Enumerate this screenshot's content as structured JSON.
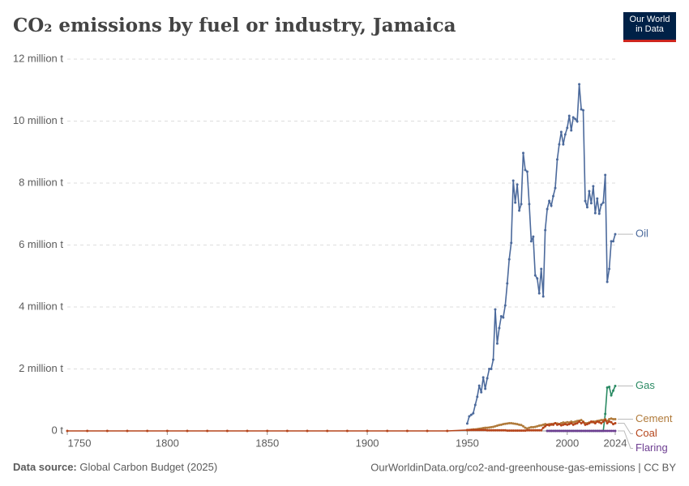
{
  "chart_data": {
    "type": "line",
    "title": "CO₂ emissions by fuel or industry, Jamaica",
    "logo": "Our World in Data",
    "source_label": "Data source:",
    "source": "Global Carbon Budget (2025)",
    "url": "OurWorldinData.org/co2-and-greenhouse-gas-emissions | CC BY",
    "xlim": [
      1750,
      2024
    ],
    "xticks": [
      1750,
      1800,
      1850,
      1900,
      1950,
      2000,
      2024
    ],
    "ylim": [
      0,
      12
    ],
    "yticks": [
      {
        "value": 0,
        "label": "0 t"
      },
      {
        "value": 2,
        "label": "2 million t"
      },
      {
        "value": 4,
        "label": "4 million t"
      },
      {
        "value": 6,
        "label": "6 million t"
      },
      {
        "value": 8,
        "label": "8 million t"
      },
      {
        "value": 10,
        "label": "10 million t"
      },
      {
        "value": 12,
        "label": "12 million t"
      }
    ],
    "grid": true,
    "x": [
      1750,
      1760,
      1770,
      1780,
      1790,
      1800,
      1810,
      1820,
      1830,
      1840,
      1850,
      1860,
      1870,
      1880,
      1890,
      1900,
      1910,
      1920,
      1930,
      1940,
      1950,
      1951,
      1952,
      1953,
      1954,
      1955,
      1956,
      1957,
      1958,
      1959,
      1960,
      1961,
      1962,
      1963,
      1964,
      1965,
      1966,
      1967,
      1968,
      1969,
      1970,
      1971,
      1972,
      1973,
      1974,
      1975,
      1976,
      1977,
      1978,
      1979,
      1980,
      1981,
      1982,
      1983,
      1984,
      1985,
      1986,
      1987,
      1988,
      1989,
      1990,
      1991,
      1992,
      1993,
      1994,
      1995,
      1996,
      1997,
      1998,
      1999,
      2000,
      2001,
      2002,
      2003,
      2004,
      2005,
      2006,
      2007,
      2008,
      2009,
      2010,
      2011,
      2012,
      2013,
      2014,
      2015,
      2016,
      2017,
      2018,
      2019,
      2020,
      2021,
      2022,
      2023,
      2024
    ],
    "series": [
      {
        "name": "Oil",
        "color": "#4c6a9c",
        "values": [
          null,
          null,
          null,
          null,
          null,
          null,
          null,
          null,
          null,
          null,
          null,
          null,
          null,
          null,
          null,
          null,
          null,
          null,
          null,
          null,
          0.24,
          0.47,
          0.52,
          0.57,
          0.84,
          1.1,
          1.46,
          1.25,
          1.73,
          1.36,
          1.7,
          2.0,
          2.0,
          2.3,
          3.92,
          2.82,
          3.32,
          3.7,
          3.66,
          4.05,
          4.76,
          5.54,
          6.07,
          8.08,
          7.37,
          7.95,
          7.11,
          7.32,
          8.97,
          8.42,
          8.37,
          7.32,
          6.12,
          6.27,
          5.02,
          4.92,
          4.44,
          5.23,
          4.34,
          6.48,
          7.16,
          7.42,
          7.27,
          7.58,
          7.84,
          8.76,
          9.25,
          9.65,
          9.25,
          9.57,
          9.78,
          10.17,
          9.7,
          10.12,
          10.07,
          9.99,
          11.19,
          10.38,
          10.35,
          7.42,
          7.22,
          7.74,
          7.35,
          7.9,
          7.03,
          7.5,
          7.01,
          7.3,
          7.37,
          8.26,
          4.81,
          5.23,
          6.12,
          6.12,
          6.35
        ]
      },
      {
        "name": "Gas",
        "color": "#2a8a63",
        "values": [
          null,
          null,
          null,
          null,
          null,
          null,
          null,
          null,
          null,
          null,
          null,
          null,
          null,
          null,
          null,
          null,
          null,
          null,
          null,
          null,
          null,
          null,
          null,
          null,
          null,
          null,
          null,
          null,
          null,
          null,
          null,
          null,
          null,
          null,
          null,
          null,
          null,
          null,
          null,
          null,
          null,
          null,
          null,
          null,
          null,
          null,
          null,
          null,
          null,
          null,
          null,
          null,
          null,
          null,
          null,
          null,
          null,
          null,
          null,
          null,
          0,
          0,
          0,
          0,
          0,
          0,
          0,
          0,
          0,
          0,
          0,
          0,
          0,
          0,
          0,
          0,
          0,
          0,
          0,
          0,
          0,
          0,
          0,
          0,
          0,
          0,
          0,
          0,
          0,
          0.55,
          1.4,
          1.42,
          1.15,
          1.3,
          1.45
        ]
      },
      {
        "name": "Cement",
        "color": "#b07a3a",
        "values": [
          null,
          null,
          null,
          null,
          null,
          null,
          null,
          null,
          null,
          null,
          null,
          null,
          null,
          null,
          null,
          null,
          null,
          null,
          null,
          null,
          0.02,
          0.03,
          0.04,
          0.05,
          0.05,
          0.06,
          0.07,
          0.08,
          0.09,
          0.1,
          0.1,
          0.11,
          0.12,
          0.13,
          0.15,
          0.17,
          0.19,
          0.2,
          0.22,
          0.23,
          0.24,
          0.25,
          0.25,
          0.24,
          0.23,
          0.22,
          0.2,
          0.19,
          0.15,
          0.1,
          0.08,
          0.1,
          0.12,
          0.12,
          0.13,
          0.15,
          0.17,
          0.18,
          0.2,
          0.22,
          0.2,
          0.22,
          0.2,
          0.23,
          0.25,
          0.24,
          0.22,
          0.25,
          0.27,
          0.26,
          0.28,
          0.27,
          0.3,
          0.28,
          0.3,
          0.32,
          0.33,
          0.35,
          0.3,
          0.25,
          0.25,
          0.27,
          0.28,
          0.3,
          0.3,
          0.32,
          0.33,
          0.35,
          0.35,
          0.38,
          0.32,
          0.38,
          0.4,
          0.38,
          0.38
        ]
      },
      {
        "name": "Coal",
        "color": "#b5451b",
        "values": [
          0,
          0,
          0,
          0,
          0,
          0,
          0,
          0,
          0,
          0,
          0,
          0,
          0,
          0,
          0,
          0,
          0,
          0,
          0,
          0,
          0.03,
          0.03,
          0.03,
          0.03,
          0.03,
          0.03,
          0.03,
          0.03,
          0.03,
          0.03,
          0.02,
          0.02,
          0.02,
          0.02,
          0.02,
          0.02,
          0.02,
          0.02,
          0.02,
          0.02,
          0.01,
          0.01,
          0.01,
          0.01,
          0.01,
          0.01,
          0.01,
          0.01,
          0.01,
          0.01,
          0.02,
          0.02,
          0.02,
          0.02,
          0.02,
          0.02,
          0.02,
          0.02,
          0.1,
          0.15,
          0.2,
          0.18,
          0.22,
          0.2,
          0.25,
          0.2,
          0.22,
          0.18,
          0.2,
          0.22,
          0.2,
          0.22,
          0.25,
          0.2,
          0.23,
          0.25,
          0.3,
          0.25,
          0.28,
          0.2,
          0.22,
          0.25,
          0.3,
          0.28,
          0.25,
          0.3,
          0.28,
          0.25,
          0.3,
          0.35,
          0.25,
          0.3,
          0.28,
          0.22,
          0.25
        ]
      },
      {
        "name": "Flaring",
        "color": "#6d3e91",
        "values": [
          null,
          null,
          null,
          null,
          null,
          null,
          null,
          null,
          null,
          null,
          null,
          null,
          null,
          null,
          null,
          null,
          null,
          null,
          null,
          null,
          null,
          null,
          null,
          null,
          null,
          null,
          null,
          null,
          null,
          null,
          null,
          null,
          null,
          null,
          null,
          null,
          null,
          null,
          null,
          null,
          null,
          null,
          null,
          null,
          null,
          null,
          null,
          null,
          null,
          null,
          null,
          null,
          null,
          null,
          null,
          null,
          null,
          null,
          null,
          null,
          0,
          0,
          0,
          0,
          0,
          0,
          0,
          0,
          0,
          0,
          0,
          0,
          0,
          0,
          0,
          0,
          0,
          0,
          0,
          0,
          0,
          0,
          0,
          0,
          0,
          0,
          0,
          0,
          0,
          0,
          0,
          0,
          0,
          0,
          0
        ]
      }
    ]
  }
}
